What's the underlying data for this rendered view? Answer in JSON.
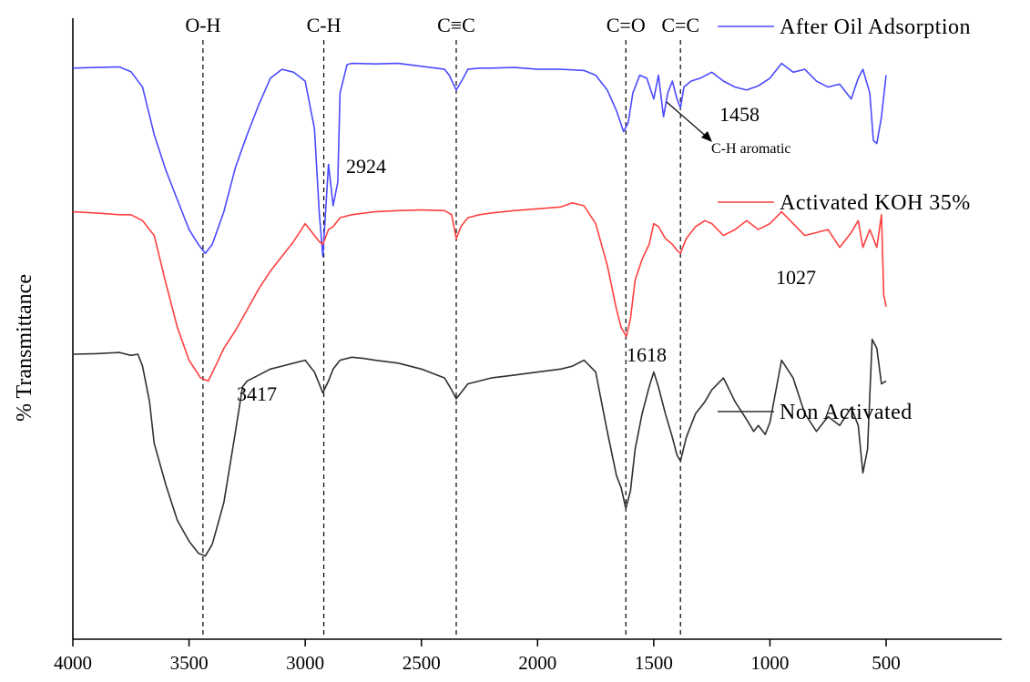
{
  "chart_data": {
    "type": "line",
    "xlabel": "",
    "ylabel": "% Transmittance",
    "xlim": [
      4000,
      400
    ],
    "x_reversed": true,
    "y_ticks_shown": false,
    "grid": false,
    "legend_placement": "right, next to each curve",
    "x_ticks": [
      "4000",
      "3500",
      "3000",
      "2500",
      "2000",
      "1500",
      "1000",
      "500"
    ],
    "band_assignments": [
      {
        "x": 3440,
        "label": "O-H"
      },
      {
        "x": 2920,
        "label": "C-H"
      },
      {
        "x": 2350,
        "label": "C≡C"
      },
      {
        "x": 1620,
        "label": "C=O"
      },
      {
        "x": 1385,
        "label": "C=C"
      }
    ],
    "peak_labels": [
      {
        "x": 3417,
        "text": "3417"
      },
      {
        "x": 2924,
        "text": "2924"
      },
      {
        "x": 1618,
        "text": "1618"
      },
      {
        "x": 1458,
        "text": "1458"
      },
      {
        "x": 1027,
        "text": "1027"
      }
    ],
    "annotation": {
      "text": "C-H aromatic",
      "x": 1458
    },
    "series": [
      {
        "name": "After Oil Adsorption",
        "color": "#4a4aff",
        "x": [
          4000,
          3900,
          3800,
          3750,
          3700,
          3650,
          3600,
          3550,
          3500,
          3460,
          3430,
          3400,
          3350,
          3300,
          3250,
          3200,
          3150,
          3100,
          3050,
          3000,
          2960,
          2940,
          2924,
          2900,
          2880,
          2860,
          2850,
          2820,
          2800,
          2700,
          2600,
          2500,
          2400,
          2380,
          2350,
          2320,
          2300,
          2250,
          2200,
          2100,
          2000,
          1900,
          1800,
          1750,
          1700,
          1660,
          1630,
          1610,
          1590,
          1560,
          1530,
          1500,
          1480,
          1458,
          1440,
          1420,
          1400,
          1385,
          1370,
          1340,
          1300,
          1250,
          1200,
          1150,
          1100,
          1050,
          1000,
          950,
          900,
          850,
          800,
          750,
          700,
          650,
          620,
          600,
          570,
          555,
          540,
          520,
          500
        ],
        "y": [
          96.2,
          96.3,
          96.4,
          95.6,
          93.0,
          85.0,
          79.0,
          74.0,
          69.0,
          66.5,
          65.0,
          66.5,
          72.0,
          79.5,
          85.0,
          90.0,
          94.5,
          96.0,
          95.5,
          94.0,
          86.0,
          72.0,
          64.5,
          80.0,
          73.0,
          77.0,
          92.0,
          96.8,
          97.0,
          96.9,
          97.0,
          96.5,
          96.0,
          95.0,
          92.5,
          94.5,
          96.0,
          96.2,
          96.2,
          96.3,
          96.0,
          96.0,
          95.8,
          95.0,
          92.5,
          89.0,
          85.5,
          87.0,
          92.0,
          95.0,
          94.5,
          91.0,
          95.0,
          88.0,
          92.0,
          94.0,
          91.0,
          89.5,
          93.0,
          94.0,
          94.5,
          95.5,
          94.0,
          93.0,
          92.5,
          93.2,
          94.5,
          97.0,
          95.5,
          96.0,
          94.0,
          93.0,
          93.5,
          91.0,
          94.5,
          96.0,
          92.0,
          84.0,
          83.5,
          88.0,
          95.0
        ]
      },
      {
        "name": "Activated KOH 35%",
        "color": "#ff4040",
        "x": [
          4000,
          3900,
          3800,
          3750,
          3700,
          3650,
          3600,
          3550,
          3500,
          3450,
          3417,
          3380,
          3350,
          3300,
          3250,
          3200,
          3150,
          3100,
          3050,
          3000,
          2960,
          2940,
          2924,
          2900,
          2880,
          2850,
          2800,
          2700,
          2600,
          2500,
          2400,
          2370,
          2350,
          2330,
          2300,
          2250,
          2200,
          2100,
          2000,
          1900,
          1850,
          1800,
          1750,
          1700,
          1660,
          1640,
          1618,
          1600,
          1580,
          1550,
          1520,
          1500,
          1480,
          1450,
          1420,
          1400,
          1385,
          1360,
          1320,
          1280,
          1250,
          1200,
          1150,
          1100,
          1050,
          1000,
          950,
          900,
          850,
          800,
          750,
          700,
          650,
          620,
          600,
          570,
          540,
          520,
          510,
          500
        ],
        "y": [
          72.0,
          71.8,
          71.5,
          71.5,
          70.5,
          68.0,
          60.0,
          52.5,
          47.0,
          44.0,
          43.5,
          46.5,
          49.0,
          52.0,
          55.5,
          59.0,
          62.0,
          64.5,
          67.0,
          70.0,
          68.0,
          67.0,
          66.5,
          69.0,
          69.5,
          71.0,
          71.5,
          72.0,
          72.2,
          72.3,
          72.2,
          71.5,
          67.5,
          69.5,
          71.0,
          71.5,
          71.8,
          72.2,
          72.5,
          72.8,
          73.5,
          73.0,
          70.0,
          63.0,
          55.5,
          52.5,
          51.0,
          54.0,
          60.5,
          64.0,
          66.5,
          70.0,
          69.5,
          67.5,
          66.5,
          65.5,
          65.0,
          67.5,
          69.5,
          70.5,
          70.0,
          68.0,
          69.0,
          70.5,
          69.0,
          70.0,
          72.0,
          70.0,
          68.0,
          68.5,
          69.0,
          66.0,
          68.5,
          70.5,
          66.0,
          69.0,
          66.0,
          71.5,
          58.0,
          56.0
        ]
      },
      {
        "name": "Non Activated",
        "color": "#303030",
        "x": [
          4000,
          3900,
          3800,
          3750,
          3720,
          3700,
          3670,
          3650,
          3600,
          3550,
          3500,
          3460,
          3430,
          3400,
          3350,
          3300,
          3270,
          3250,
          3200,
          3150,
          3100,
          3050,
          3000,
          2960,
          2940,
          2924,
          2900,
          2880,
          2850,
          2800,
          2750,
          2700,
          2600,
          2500,
          2400,
          2370,
          2350,
          2320,
          2300,
          2250,
          2200,
          2100,
          2000,
          1900,
          1850,
          1800,
          1750,
          1700,
          1660,
          1640,
          1620,
          1600,
          1580,
          1550,
          1520,
          1500,
          1480,
          1450,
          1420,
          1400,
          1385,
          1360,
          1320,
          1280,
          1250,
          1200,
          1150,
          1100,
          1070,
          1050,
          1020,
          1000,
          950,
          900,
          850,
          800,
          750,
          700,
          650,
          620,
          600,
          580,
          560,
          540,
          520,
          500
        ],
        "y": [
          48.0,
          48.1,
          48.3,
          47.8,
          48.0,
          46.0,
          40.0,
          33.0,
          26.0,
          20.0,
          16.5,
          14.5,
          14.0,
          16.0,
          23.0,
          35.0,
          42.5,
          43.5,
          44.5,
          45.5,
          46.0,
          46.5,
          47.0,
          45.0,
          43.0,
          41.5,
          43.5,
          45.5,
          47.0,
          47.5,
          47.3,
          47.0,
          46.5,
          45.5,
          44.0,
          42.0,
          40.5,
          42.0,
          43.0,
          43.5,
          44.0,
          44.5,
          45.0,
          45.5,
          46.0,
          47.0,
          45.0,
          35.0,
          27.5,
          25.5,
          22.0,
          25.0,
          32.0,
          38.0,
          42.5,
          45.0,
          42.5,
          38.0,
          34.0,
          31.0,
          30.0,
          34.0,
          38.0,
          40.0,
          42.0,
          44.0,
          40.0,
          37.0,
          35.0,
          36.0,
          34.5,
          36.5,
          47.0,
          44.0,
          38.0,
          35.0,
          37.5,
          36.0,
          39.0,
          36.0,
          28.0,
          32.0,
          50.5,
          49.0,
          43.0,
          43.5
        ]
      }
    ]
  }
}
